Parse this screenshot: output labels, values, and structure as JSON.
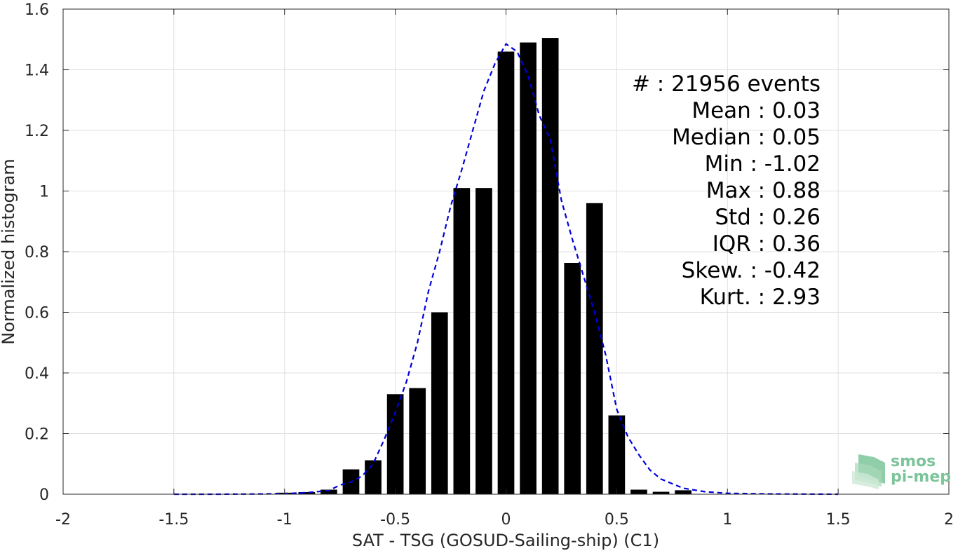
{
  "chart_data": {
    "type": "bar",
    "xlabel": "SAT - TSG (GOSUD-Sailing-ship) (C1)",
    "ylabel": "Normalized histogram",
    "xlim": [
      -2,
      2
    ],
    "ylim": [
      0,
      1.6
    ],
    "xticks": [
      -2,
      -1.5,
      -1,
      -0.5,
      0,
      0.5,
      1,
      1.5,
      2
    ],
    "xtick_labels": [
      "-2",
      "-1.5",
      "-1",
      "-0.5",
      "0",
      "0.5",
      "1",
      "1.5",
      "2"
    ],
    "yticks": [
      0,
      0.2,
      0.4,
      0.6,
      0.8,
      1,
      1.2,
      1.4,
      1.6
    ],
    "ytick_labels": [
      "0",
      "0.2",
      "0.4",
      "0.6",
      "0.8",
      "1",
      "1.2",
      "1.4",
      "1.6"
    ],
    "grid": true,
    "bar_width": 0.075,
    "bar_color": "#000000",
    "bars": {
      "x": [
        -1.0,
        -0.9,
        -0.8,
        -0.7,
        -0.6,
        -0.5,
        -0.4,
        -0.3,
        -0.2,
        -0.1,
        0.0,
        0.1,
        0.2,
        0.3,
        0.4,
        0.5,
        0.6,
        0.7,
        0.8
      ],
      "values": [
        0.005,
        0.007,
        0.015,
        0.082,
        0.112,
        0.33,
        0.35,
        0.6,
        1.01,
        1.01,
        1.46,
        1.49,
        1.505,
        0.763,
        0.96,
        0.26,
        0.015,
        0.008,
        0.013
      ]
    },
    "fit_curve": {
      "style": "dashed",
      "color": "#0000dd",
      "x": [
        -1.5,
        -1.3,
        -1.1,
        -1.0,
        -0.9,
        -0.8,
        -0.75,
        -0.7,
        -0.65,
        -0.6,
        -0.55,
        -0.5,
        -0.45,
        -0.4,
        -0.35,
        -0.3,
        -0.25,
        -0.2,
        -0.15,
        -0.1,
        -0.05,
        0.0,
        0.05,
        0.1,
        0.15,
        0.2,
        0.25,
        0.3,
        0.35,
        0.4,
        0.45,
        0.5,
        0.55,
        0.6,
        0.65,
        0.7,
        0.8,
        0.9,
        1.0,
        1.2,
        1.5
      ],
      "y": [
        0.0,
        0.0,
        0.001,
        0.002,
        0.005,
        0.012,
        0.03,
        0.04,
        0.06,
        0.1,
        0.18,
        0.27,
        0.37,
        0.5,
        0.67,
        0.8,
        0.95,
        1.07,
        1.2,
        1.33,
        1.42,
        1.485,
        1.46,
        1.38,
        1.25,
        1.17,
        0.97,
        0.84,
        0.72,
        0.6,
        0.46,
        0.28,
        0.19,
        0.13,
        0.08,
        0.05,
        0.02,
        0.008,
        0.003,
        0.001,
        0.0
      ]
    },
    "stats_box": {
      "placement": "top-right",
      "lines": [
        "#  : 21956 events",
        "Mean : 0.03",
        "Median : 0.05",
        "Min : -1.02",
        "Max : 0.88",
        "Std : 0.26",
        "IQR : 0.36",
        "Skew. : -0.42",
        "Kurt. : 2.93"
      ]
    },
    "logo": {
      "line1": "smos",
      "line2": "pi-mep",
      "color": "#7cc49a"
    }
  }
}
